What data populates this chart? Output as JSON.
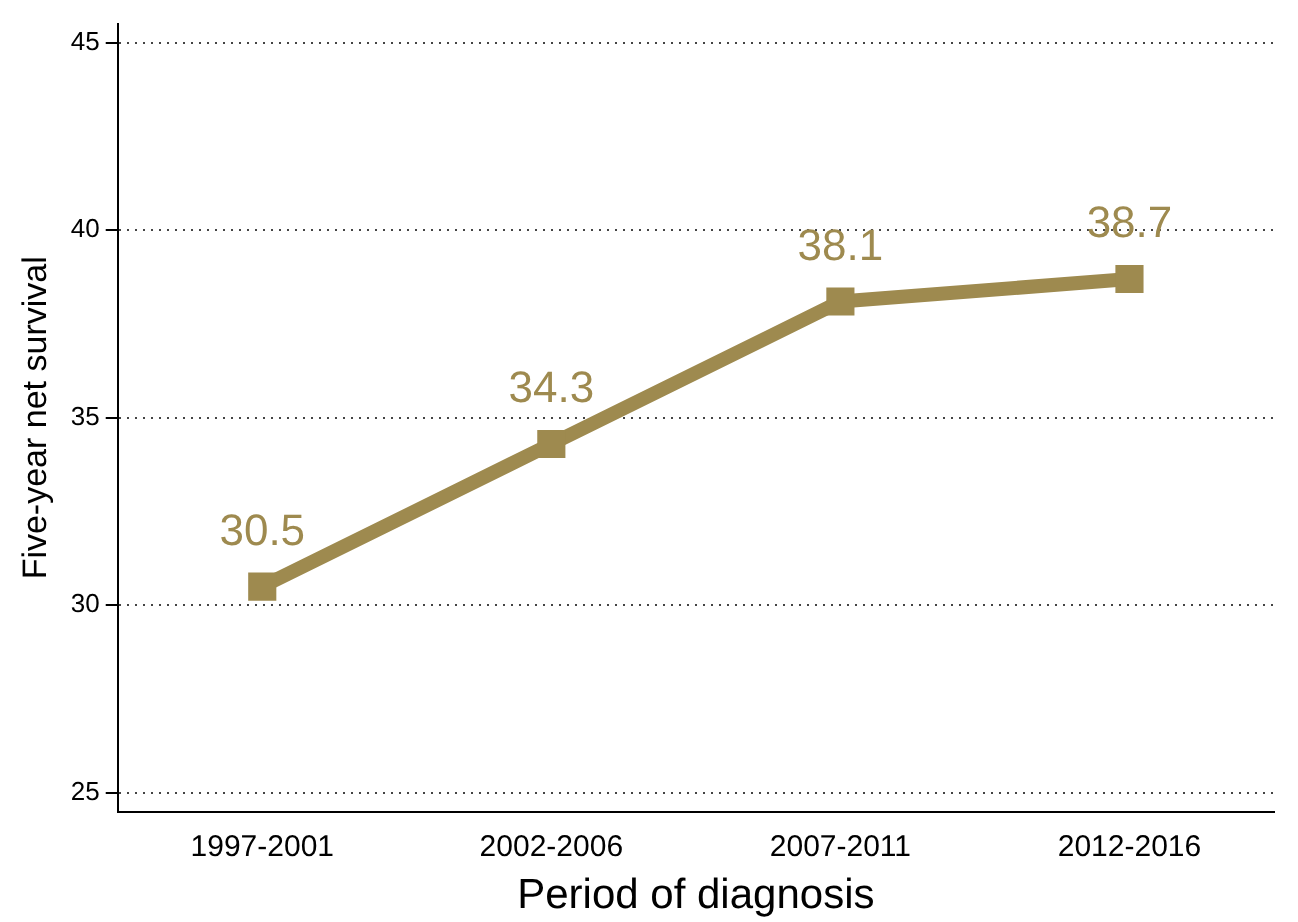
{
  "chart_data": {
    "type": "line",
    "xlabel": "Period of diagnosis",
    "ylabel": "Five-year net survival",
    "categories": [
      "1997-2001",
      "2002-2006",
      "2007-2011",
      "2012-2016"
    ],
    "series": [
      {
        "color": "#9e8a4f",
        "values": [
          30.5,
          34.3,
          38.1,
          38.7
        ]
      }
    ],
    "ylim": [
      24.5,
      45.5
    ],
    "yticks": [
      25,
      30,
      35,
      40,
      45
    ],
    "grid": "y",
    "legend": false,
    "marker": "square",
    "line_style": "solid",
    "data_labels": true
  }
}
